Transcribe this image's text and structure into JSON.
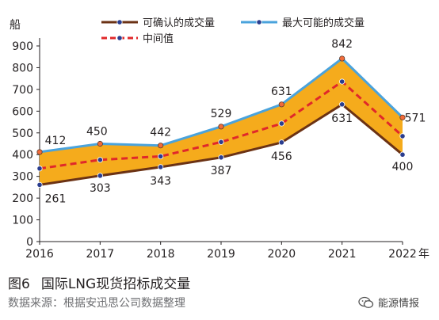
{
  "chart_data": {
    "type": "line",
    "units": {
      "y": "船",
      "x": "年"
    },
    "x": [
      "2016",
      "2017",
      "2018",
      "2019",
      "2020",
      "2021",
      "2022"
    ],
    "ylim": [
      0,
      900
    ],
    "yticks": [
      0,
      100,
      200,
      300,
      400,
      500,
      600,
      700,
      800,
      900
    ],
    "series": [
      {
        "name": "可确认的成交量",
        "values": [
          261,
          303,
          343,
          387,
          456,
          631,
          400
        ]
      },
      {
        "name": "最大可能的成交量",
        "values": [
          412,
          450,
          442,
          529,
          631,
          842,
          571
        ]
      },
      {
        "name": "中间值",
        "values": [
          336,
          376,
          392,
          458,
          543,
          736,
          485
        ]
      }
    ],
    "legend": {
      "position": "top",
      "columns": 2
    },
    "grid": false
  },
  "caption": {
    "number": "图6",
    "title": "国际LNG现货招标成交量"
  },
  "source": "数据来源：根据安迅思公司数据整理",
  "watermark": "能源情报",
  "colors": {
    "low_line": "#6b3214",
    "high_line": "#4aa3dc",
    "mid_line": "#e0282a",
    "fill": "#f5ab1c",
    "marker": "#2a3d8f",
    "marker_high": "#f26b3a"
  }
}
